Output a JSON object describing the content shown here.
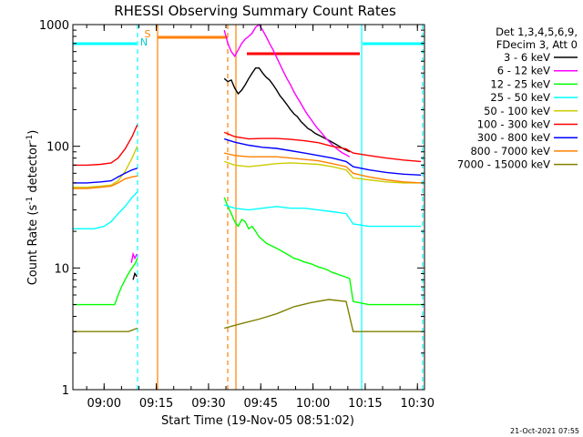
{
  "chart_data": {
    "type": "line",
    "title": "RHESSI Observing Summary Count Rates",
    "xlabel": "Start Time (19-Nov-05 08:51:02)",
    "ylabel_main": "Count Rate (s",
    "ylabel_sup1": "-1",
    "ylabel_mid": " detector",
    "ylabel_sup2": "-1",
    "ylabel_end": ")",
    "y_scale": "log",
    "ylim": [
      1,
      1000
    ],
    "xlim_minutes": [
      0,
      101
    ],
    "x_ticks": [
      {
        "t": 8.97,
        "label": "09:00"
      },
      {
        "t": 23.97,
        "label": "09:15"
      },
      {
        "t": 38.97,
        "label": "09:30"
      },
      {
        "t": 53.97,
        "label": "09:45"
      },
      {
        "t": 68.97,
        "label": "10:00"
      },
      {
        "t": 83.97,
        "label": "10:15"
      },
      {
        "t": 98.97,
        "label": "10:30"
      }
    ],
    "y_ticks": [
      {
        "v": 1,
        "label": "1"
      },
      {
        "v": 10,
        "label": "10"
      },
      {
        "v": 100,
        "label": "100"
      },
      {
        "v": 1000,
        "label": "1000"
      }
    ],
    "legend_header": [
      "Det 1,3,4,5,6,9,",
      "FDecim 3, Att 0"
    ],
    "legend_position": "right",
    "timestamp": "21-Oct-2021 07:55",
    "flag_labels": {
      "s": "S",
      "n": "N"
    },
    "series": [
      {
        "name": "3 - 6 keV",
        "color": "#000000",
        "points": [
          [
            17.3,
            8
          ],
          [
            17.8,
            9
          ],
          [
            18.4,
            8.5
          ],
          [
            43.5,
            360
          ],
          [
            44.5,
            340
          ],
          [
            45.5,
            350
          ],
          [
            46.5,
            300
          ],
          [
            47.5,
            270
          ],
          [
            48.5,
            290
          ],
          [
            49.5,
            320
          ],
          [
            50.5,
            360
          ],
          [
            51.5,
            400
          ],
          [
            52.5,
            440
          ],
          [
            53.5,
            440
          ],
          [
            54.5,
            400
          ],
          [
            55.5,
            370
          ],
          [
            56.5,
            350
          ],
          [
            57.5,
            320
          ],
          [
            58.5,
            290
          ],
          [
            59.5,
            260
          ],
          [
            60.5,
            240
          ],
          [
            61.5,
            220
          ],
          [
            62.5,
            200
          ],
          [
            63.5,
            185
          ],
          [
            64.5,
            175
          ],
          [
            65.5,
            160
          ],
          [
            66.5,
            150
          ],
          [
            67.5,
            140
          ],
          [
            68.5,
            135
          ],
          [
            69.5,
            128
          ],
          [
            70.5,
            124
          ],
          [
            71.5,
            120
          ],
          [
            72.5,
            116
          ],
          [
            73.5,
            112
          ],
          [
            74.5,
            108
          ],
          [
            75.5,
            104
          ],
          [
            76.5,
            100
          ],
          [
            77.5,
            96
          ],
          [
            78.5,
            93
          ],
          [
            79.5,
            90
          ]
        ]
      },
      {
        "name": "6 - 12 keV",
        "color": "#ff00ff",
        "points": [
          [
            16.8,
            11
          ],
          [
            17.3,
            13
          ],
          [
            17.8,
            12
          ],
          [
            18.4,
            13
          ],
          [
            43.5,
            900
          ],
          [
            44.5,
            700
          ],
          [
            45.5,
            600
          ],
          [
            46.5,
            550
          ],
          [
            47.5,
            620
          ],
          [
            48.5,
            700
          ],
          [
            49.5,
            760
          ],
          [
            50.5,
            800
          ],
          [
            51.5,
            850
          ],
          [
            52.5,
            950
          ],
          [
            53.5,
            1000
          ],
          [
            54.5,
            900
          ],
          [
            55.5,
            800
          ],
          [
            56.5,
            700
          ],
          [
            57.5,
            620
          ],
          [
            58.5,
            540
          ],
          [
            59.5,
            470
          ],
          [
            60.5,
            410
          ],
          [
            61.5,
            360
          ],
          [
            62.5,
            320
          ],
          [
            63.5,
            280
          ],
          [
            64.5,
            250
          ],
          [
            65.5,
            225
          ],
          [
            66.5,
            200
          ],
          [
            67.5,
            180
          ],
          [
            68.5,
            165
          ],
          [
            69.5,
            150
          ],
          [
            70.5,
            138
          ],
          [
            71.5,
            128
          ],
          [
            72.5,
            118
          ],
          [
            73.5,
            110
          ],
          [
            74.5,
            103
          ],
          [
            75.5,
            97
          ],
          [
            76.5,
            92
          ],
          [
            77.5,
            88
          ],
          [
            78.5,
            85
          ],
          [
            79.5,
            82
          ]
        ]
      },
      {
        "name": "12 - 25 keV",
        "color": "#00ff00",
        "points": [
          [
            0,
            5
          ],
          [
            4,
            5
          ],
          [
            8,
            5
          ],
          [
            12,
            5
          ],
          [
            13,
            6
          ],
          [
            14,
            7
          ],
          [
            15,
            8
          ],
          [
            16,
            9
          ],
          [
            17,
            10
          ],
          [
            18,
            11
          ],
          [
            18.5,
            12
          ],
          [
            43.5,
            38
          ],
          [
            44.5,
            32
          ],
          [
            45.5,
            28
          ],
          [
            46.5,
            24
          ],
          [
            47.5,
            22
          ],
          [
            48.5,
            25
          ],
          [
            49.5,
            24
          ],
          [
            50.5,
            21
          ],
          [
            51.5,
            22
          ],
          [
            52.5,
            20
          ],
          [
            53.5,
            18
          ],
          [
            54.5,
            17
          ],
          [
            55.5,
            16
          ],
          [
            56.5,
            15.5
          ],
          [
            57.5,
            15
          ],
          [
            58.5,
            14.5
          ],
          [
            59.5,
            14
          ],
          [
            60.5,
            13.5
          ],
          [
            61.5,
            13
          ],
          [
            62.5,
            12.5
          ],
          [
            63.5,
            12
          ],
          [
            64.5,
            11.8
          ],
          [
            65.5,
            11.5
          ],
          [
            66.5,
            11.2
          ],
          [
            67.5,
            11
          ],
          [
            68.5,
            10.8
          ],
          [
            69.5,
            10.5
          ],
          [
            70.5,
            10.2
          ],
          [
            71.5,
            10
          ],
          [
            72.5,
            9.8
          ],
          [
            73.5,
            9.5
          ],
          [
            74.5,
            9.2
          ],
          [
            75.5,
            9
          ],
          [
            76.5,
            8.8
          ],
          [
            77.5,
            8.6
          ],
          [
            78.5,
            8.4
          ],
          [
            79.5,
            8.2
          ],
          [
            80.5,
            5.3
          ],
          [
            85,
            5
          ],
          [
            90,
            5
          ],
          [
            95,
            5
          ],
          [
            100,
            5
          ]
        ]
      },
      {
        "name": "25 - 50 keV",
        "color": "#00ffff",
        "points": [
          [
            0,
            21
          ],
          [
            3,
            21
          ],
          [
            6,
            21
          ],
          [
            9,
            22
          ],
          [
            11,
            24
          ],
          [
            13,
            28
          ],
          [
            15,
            32
          ],
          [
            17,
            38
          ],
          [
            18.5,
            42
          ],
          [
            43.5,
            33
          ],
          [
            46.5,
            31
          ],
          [
            50.5,
            30
          ],
          [
            54.5,
            31
          ],
          [
            58.5,
            32
          ],
          [
            62.5,
            31
          ],
          [
            66.5,
            31
          ],
          [
            70.5,
            30
          ],
          [
            74.5,
            29
          ],
          [
            78.5,
            28
          ],
          [
            80.5,
            23
          ],
          [
            85,
            22
          ],
          [
            90,
            22
          ],
          [
            95,
            22
          ],
          [
            100,
            22
          ]
        ]
      },
      {
        "name": "50 - 100 keV",
        "color": "#cccc00",
        "points": [
          [
            0,
            46
          ],
          [
            4,
            46
          ],
          [
            8,
            47
          ],
          [
            11,
            48
          ],
          [
            13,
            52
          ],
          [
            15,
            62
          ],
          [
            17,
            80
          ],
          [
            18.5,
            100
          ],
          [
            43.5,
            75
          ],
          [
            46.5,
            70
          ],
          [
            50.5,
            68
          ],
          [
            54.5,
            70
          ],
          [
            58.5,
            72
          ],
          [
            62.5,
            73
          ],
          [
            66.5,
            72
          ],
          [
            70.5,
            71
          ],
          [
            74.5,
            68
          ],
          [
            78.5,
            64
          ],
          [
            80.5,
            55
          ],
          [
            85,
            53
          ],
          [
            90,
            51
          ],
          [
            95,
            50
          ],
          [
            100,
            50
          ]
        ]
      },
      {
        "name": "100 - 300 keV",
        "color": "#ff0000",
        "points": [
          [
            0,
            70
          ],
          [
            4,
            70
          ],
          [
            8,
            71
          ],
          [
            11,
            73
          ],
          [
            13,
            80
          ],
          [
            15,
            95
          ],
          [
            17,
            120
          ],
          [
            18.5,
            150
          ],
          [
            43.5,
            130
          ],
          [
            46.5,
            120
          ],
          [
            50.5,
            115
          ],
          [
            54.5,
            116
          ],
          [
            58.5,
            116
          ],
          [
            62.5,
            114
          ],
          [
            66.5,
            111
          ],
          [
            70.5,
            107
          ],
          [
            74.5,
            100
          ],
          [
            78.5,
            95
          ],
          [
            80.5,
            88
          ],
          [
            85,
            84
          ],
          [
            90,
            80
          ],
          [
            95,
            77
          ],
          [
            100,
            75
          ]
        ]
      },
      {
        "name": "300 - 800 keV",
        "color": "#0000ff",
        "points": [
          [
            0,
            50
          ],
          [
            4,
            50
          ],
          [
            8,
            51
          ],
          [
            11,
            52
          ],
          [
            13,
            56
          ],
          [
            15,
            60
          ],
          [
            17,
            64
          ],
          [
            18.5,
            66
          ],
          [
            43.5,
            115
          ],
          [
            46.5,
            108
          ],
          [
            50.5,
            102
          ],
          [
            54.5,
            98
          ],
          [
            58.5,
            96
          ],
          [
            62.5,
            92
          ],
          [
            66.5,
            88
          ],
          [
            70.5,
            84
          ],
          [
            74.5,
            80
          ],
          [
            78.5,
            75
          ],
          [
            80.5,
            68
          ],
          [
            85,
            64
          ],
          [
            90,
            61
          ],
          [
            95,
            59
          ],
          [
            100,
            58
          ]
        ]
      },
      {
        "name": "800 - 7000 keV",
        "color": "#ff8000",
        "points": [
          [
            0,
            45
          ],
          [
            4,
            45
          ],
          [
            8,
            46
          ],
          [
            11,
            47
          ],
          [
            13,
            50
          ],
          [
            15,
            54
          ],
          [
            17,
            56
          ],
          [
            18.5,
            57
          ],
          [
            43.5,
            88
          ],
          [
            46.5,
            84
          ],
          [
            50.5,
            82
          ],
          [
            54.5,
            82
          ],
          [
            58.5,
            82
          ],
          [
            62.5,
            80
          ],
          [
            66.5,
            78
          ],
          [
            70.5,
            76
          ],
          [
            74.5,
            72
          ],
          [
            78.5,
            68
          ],
          [
            80.5,
            60
          ],
          [
            85,
            56
          ],
          [
            90,
            53
          ],
          [
            95,
            51
          ],
          [
            100,
            50
          ]
        ]
      },
      {
        "name": "7000 - 15000 keV",
        "color": "#808000",
        "points": [
          [
            0,
            3
          ],
          [
            4,
            3
          ],
          [
            8,
            3
          ],
          [
            12,
            3
          ],
          [
            16,
            3
          ],
          [
            18.5,
            3.2
          ],
          [
            43.5,
            3.2
          ],
          [
            48.5,
            3.5
          ],
          [
            53.5,
            3.8
          ],
          [
            58.5,
            4.2
          ],
          [
            63.5,
            4.8
          ],
          [
            68.5,
            5.2
          ],
          [
            73.5,
            5.5
          ],
          [
            78.5,
            5.3
          ],
          [
            80.5,
            3
          ],
          [
            85,
            3
          ],
          [
            90,
            3
          ],
          [
            95,
            3
          ],
          [
            100,
            3
          ]
        ]
      }
    ]
  }
}
